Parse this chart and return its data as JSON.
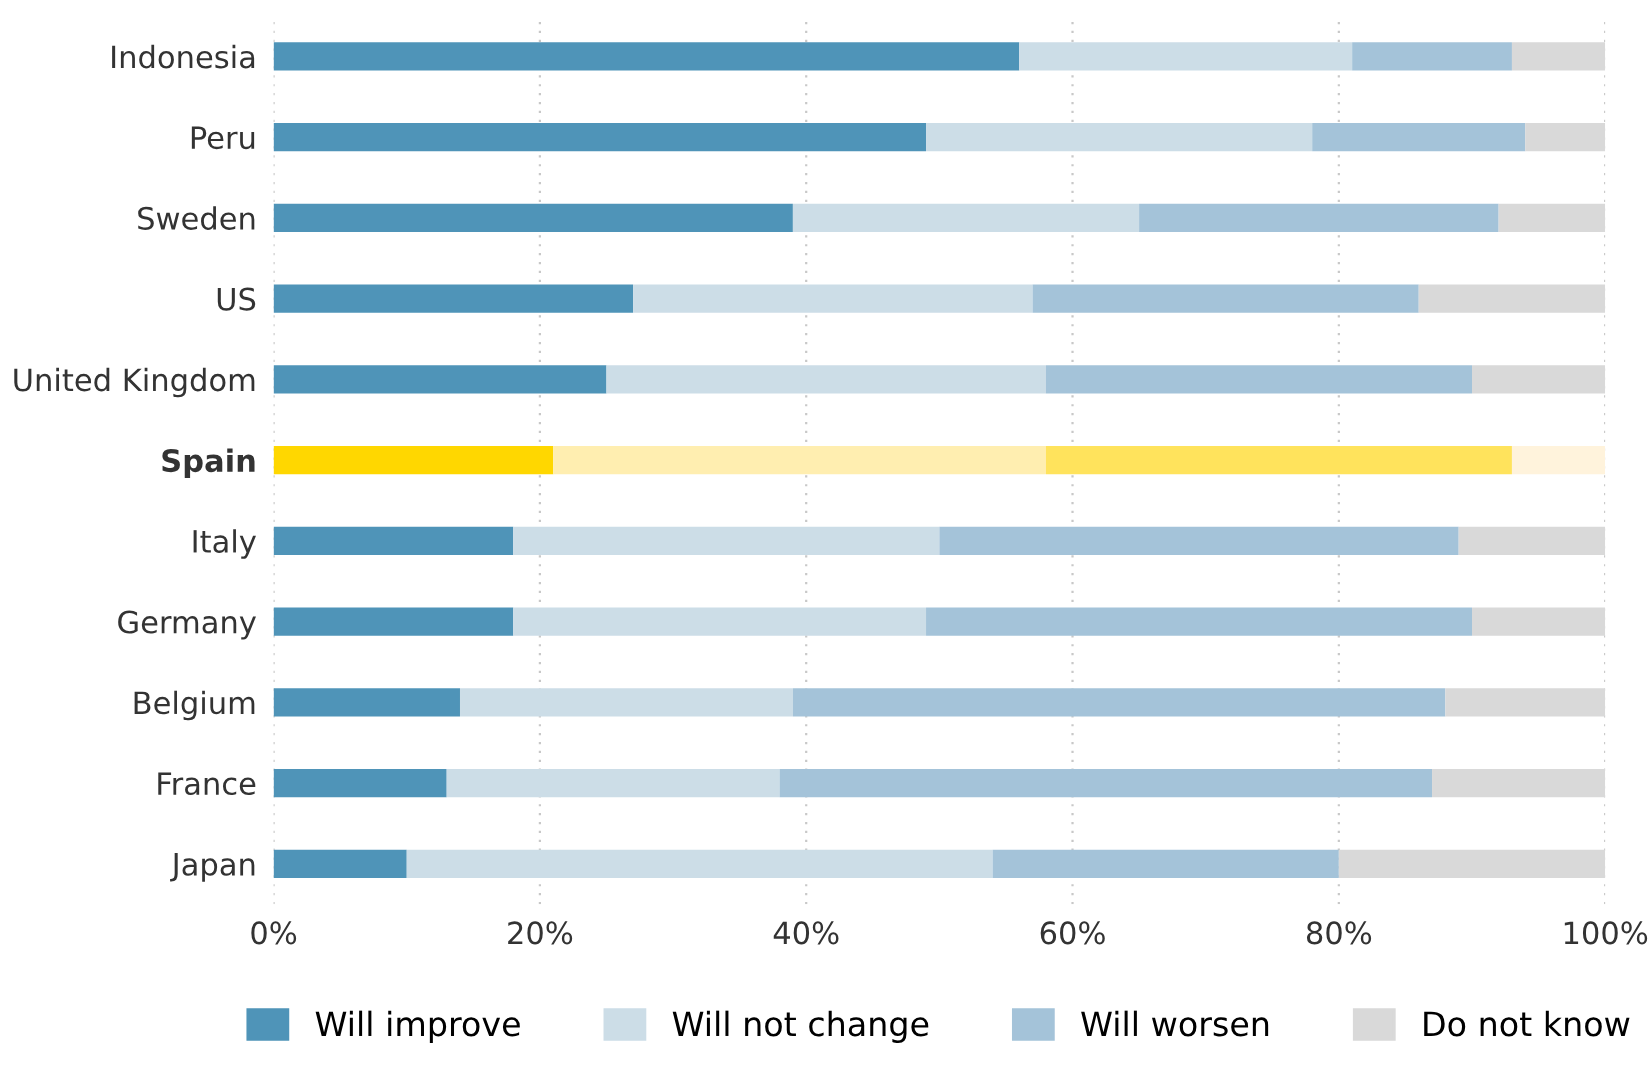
{
  "chart_data": {
    "type": "bar",
    "orientation": "horizontal",
    "stacked": true,
    "categories": [
      "Indonesia",
      "Peru",
      "Sweden",
      "US",
      "United Kingdom",
      "Spain",
      "Italy",
      "Germany",
      "Belgium",
      "France",
      "Japan"
    ],
    "series": [
      {
        "name": "Will improve",
        "color": "#4f94b8",
        "colors": [
          "#4f94b8",
          "#4f94b8",
          "#4f94b8",
          "#4f94b8",
          "#4f94b8",
          "#ffd700",
          "#4f94b8",
          "#4f94b8",
          "#4f94b8",
          "#4f94b8",
          "#4f94b8"
        ],
        "values": [
          56,
          49,
          39,
          27,
          25,
          21,
          18,
          18,
          14,
          13,
          10
        ]
      },
      {
        "name": "Will not change",
        "color": "#ccdde7",
        "colors": [
          "#ccdde7",
          "#ccdde7",
          "#ccdde7",
          "#ccdde7",
          "#ccdde7",
          "#ffeeb0",
          "#ccdde7",
          "#ccdde7",
          "#ccdde7",
          "#ccdde7",
          "#ccdde7"
        ],
        "values": [
          25,
          29,
          26,
          30,
          33,
          37,
          32,
          31,
          25,
          25,
          44
        ]
      },
      {
        "name": "Will worsen",
        "color": "#a4c3d9",
        "colors": [
          "#a4c3d9",
          "#a4c3d9",
          "#a4c3d9",
          "#a4c3d9",
          "#a4c3d9",
          "#ffe35c",
          "#a4c3d9",
          "#a4c3d9",
          "#a4c3d9",
          "#a4c3d9",
          "#a4c3d9"
        ],
        "values": [
          12,
          16,
          27,
          29,
          32,
          35,
          39,
          41,
          49,
          49,
          26
        ]
      },
      {
        "name": "Do not know",
        "color": "#d9d9d9",
        "colors": [
          "#d9d9d9",
          "#d9d9d9",
          "#d9d9d9",
          "#d9d9d9",
          "#d9d9d9",
          "#fff3dc",
          "#d9d9d9",
          "#d9d9d9",
          "#d9d9d9",
          "#d9d9d9",
          "#d9d9d9"
        ],
        "values": [
          7,
          6,
          8,
          14,
          10,
          7,
          11,
          10,
          12,
          13,
          20
        ]
      }
    ],
    "xlim": [
      0,
      100
    ],
    "xticks": [
      {
        "value": 0,
        "label": "0%"
      },
      {
        "value": 20,
        "label": "20%"
      },
      {
        "value": 40,
        "label": "40%"
      },
      {
        "value": 60,
        "label": "60%"
      },
      {
        "value": 80,
        "label": "80%"
      },
      {
        "value": 100,
        "label": "100%"
      }
    ],
    "grid": "x",
    "legend": "bottom"
  }
}
